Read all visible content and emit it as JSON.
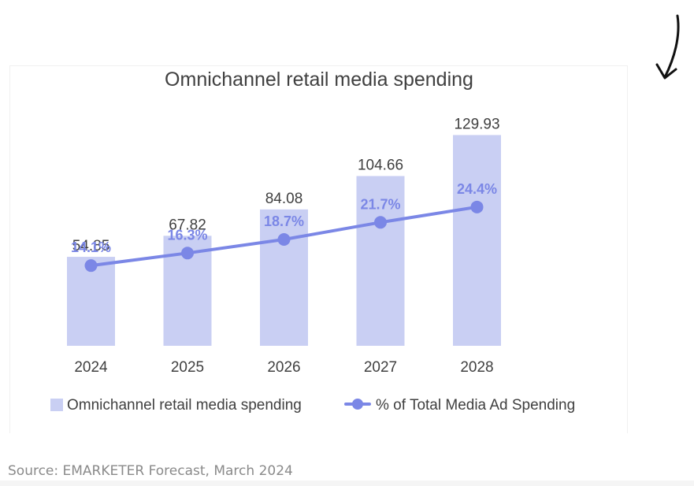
{
  "source_note": "Source: EMARKETER Forecast, March 2024",
  "colors": {
    "bar": "#c9cff3",
    "line": "#7b87e6",
    "line_label": "#7b87e6",
    "text": "#404040",
    "source_text": "#8a8a8a"
  },
  "chart_data": {
    "type": "bar",
    "title": "Omnichannel retail media spending",
    "categories": [
      "2024",
      "2025",
      "2026",
      "2027",
      "2028"
    ],
    "xlabel": "",
    "ylabel": "",
    "ylim": [
      0,
      135
    ],
    "legend_position": "bottom",
    "series": [
      {
        "name": "Omnichannel retail media spending",
        "type": "bar",
        "values": [
          54.85,
          67.82,
          84.08,
          104.66,
          129.93
        ],
        "labels": [
          "54.85",
          "67.82",
          "84.08",
          "104.66",
          "129.93"
        ]
      },
      {
        "name": "% of Total Media Ad Spending",
        "type": "line",
        "axis": "secondary",
        "values": [
          14.1,
          16.3,
          18.7,
          21.7,
          24.4
        ],
        "labels": [
          "14.1%",
          "16.3%",
          "18.7%",
          "21.7%",
          "24.4%"
        ],
        "ylim": [
          0,
          38.5
        ]
      }
    ]
  }
}
